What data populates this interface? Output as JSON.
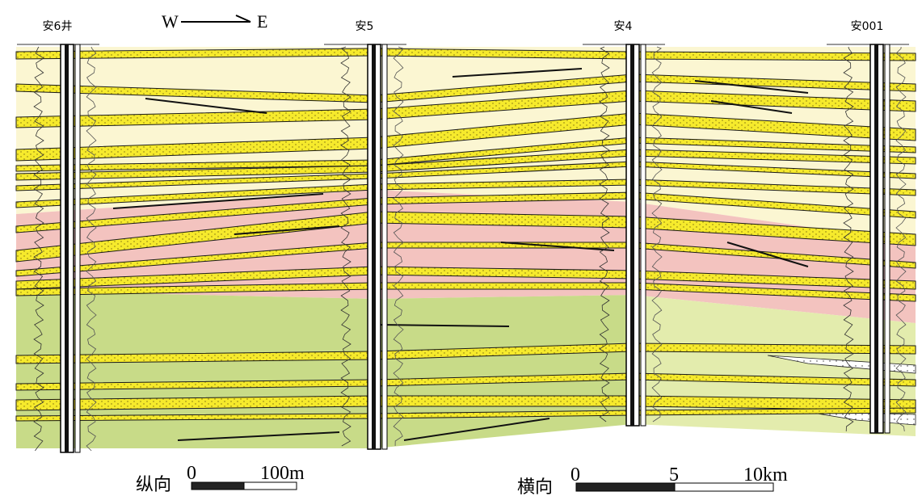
{
  "direction": {
    "west": "W",
    "east": "E"
  },
  "wells": [
    {
      "label": "安6井"
    },
    {
      "label": "安5"
    },
    {
      "label": "安4"
    },
    {
      "label": "安001"
    }
  ],
  "scales": {
    "vertical": {
      "label": "纵向",
      "ticks": [
        "0",
        "100m"
      ]
    },
    "horizontal": {
      "label": "横向",
      "ticks": [
        "0",
        "5",
        "10km"
      ]
    }
  }
}
